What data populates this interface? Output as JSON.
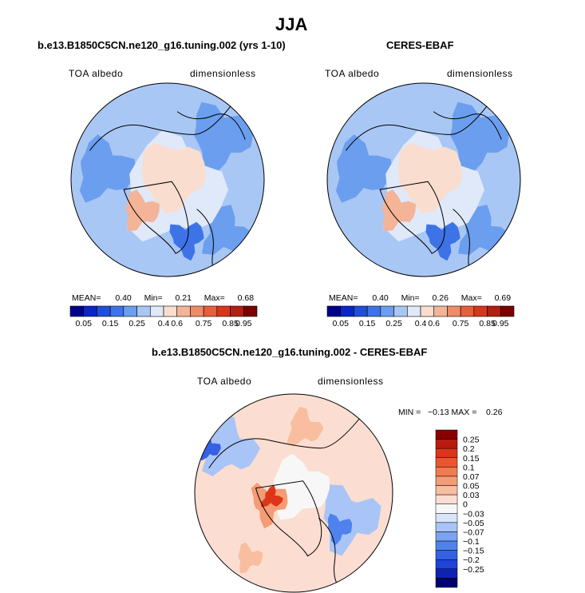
{
  "page": {
    "title": "JJA"
  },
  "colors": {
    "abs_scale": [
      "#00008c",
      "#0a26c8",
      "#1f4fd9",
      "#3d73e6",
      "#6b9eee",
      "#a9c7f4",
      "#dfe9fa",
      "#f9ddcf",
      "#f4b497",
      "#ee8c68",
      "#e85e3a",
      "#d8361c",
      "#b31d12",
      "#7a0000"
    ],
    "diff_scale": [
      "#00006e",
      "#0f22b4",
      "#1f44d9",
      "#3561e5",
      "#4f82ed",
      "#7aa3f1",
      "#a9c4f6",
      "#d7e4fa",
      "#f7f7f7",
      "#fbded1",
      "#f8be9f",
      "#f59c75",
      "#f27a50",
      "#ec5530",
      "#dd3518",
      "#b81c0e",
      "#8a0000"
    ]
  },
  "panels": [
    {
      "heading": "b.e13.B1850C5CN.ne120_g16.tuning.002 (yrs 1-10)",
      "left_label": "TOA albedo",
      "right_label": "dimensionless",
      "stats": {
        "mean_label": "MEAN=",
        "mean": "0.40",
        "min_label": "Min=",
        "min": "0.21",
        "max_label": "Max=",
        "max": "0.68"
      }
    },
    {
      "heading": "CERES-EBAF",
      "left_label": "TOA albedo",
      "right_label": "dimensionless",
      "stats": {
        "mean_label": "MEAN=",
        "mean": "0.40",
        "min_label": "Min=",
        "min": "0.26",
        "max_label": "Max=",
        "max": "0.69"
      }
    }
  ],
  "diff_panel": {
    "heading": "b.e13.B1850C5CN.ne120_g16.tuning.002 - CERES-EBAF",
    "left_label": "TOA albedo",
    "right_label": "dimensionless",
    "minmax": "MIN =   −0.13 MAX =    0.26"
  },
  "chart_data": [
    {
      "type": "heatmap",
      "projection": "north polar stereographic",
      "title": "b.e13.B1850C5CN.ne120_g16.tuning.002 (yrs 1-10)",
      "variable": "TOA albedo",
      "units": "dimensionless",
      "mean": 0.4,
      "min": 0.21,
      "max": 0.68,
      "colorbar_levels": [
        0.05,
        0.15,
        0.25,
        0.4,
        0.6,
        0.75,
        0.85,
        0.95
      ],
      "colorbar_tick_labels": [
        "0.05",
        "0.15",
        "0.25",
        "0.4",
        "0.6",
        "0.75",
        "0.85",
        "0.95"
      ]
    },
    {
      "type": "heatmap",
      "projection": "north polar stereographic",
      "title": "CERES-EBAF",
      "variable": "TOA albedo",
      "units": "dimensionless",
      "mean": 0.4,
      "min": 0.26,
      "max": 0.69,
      "colorbar_levels": [
        0.05,
        0.15,
        0.25,
        0.4,
        0.6,
        0.75,
        0.85,
        0.95
      ],
      "colorbar_tick_labels": [
        "0.05",
        "0.15",
        "0.25",
        "0.4",
        "0.6",
        "0.75",
        "0.85",
        "0.95"
      ]
    },
    {
      "type": "heatmap",
      "projection": "north polar stereographic",
      "title": "b.e13.B1850C5CN.ne120_g16.tuning.002 - CERES-EBAF",
      "variable": "TOA albedo",
      "units": "dimensionless",
      "min": -0.13,
      "max": 0.26,
      "colorbar_levels": [
        0.25,
        0.2,
        0.15,
        0.1,
        0.07,
        0.05,
        0.03,
        0,
        -0.03,
        -0.05,
        -0.07,
        -0.1,
        -0.15,
        -0.2,
        -0.25
      ],
      "colorbar_tick_labels": [
        "0.25",
        "0.2",
        "0.15",
        "0.1",
        "0.07",
        "0.05",
        "0.03",
        "0",
        "−0.03",
        "−0.05",
        "−0.07",
        "−0.1",
        "−0.15",
        "−0.2",
        "−0.25"
      ]
    }
  ]
}
